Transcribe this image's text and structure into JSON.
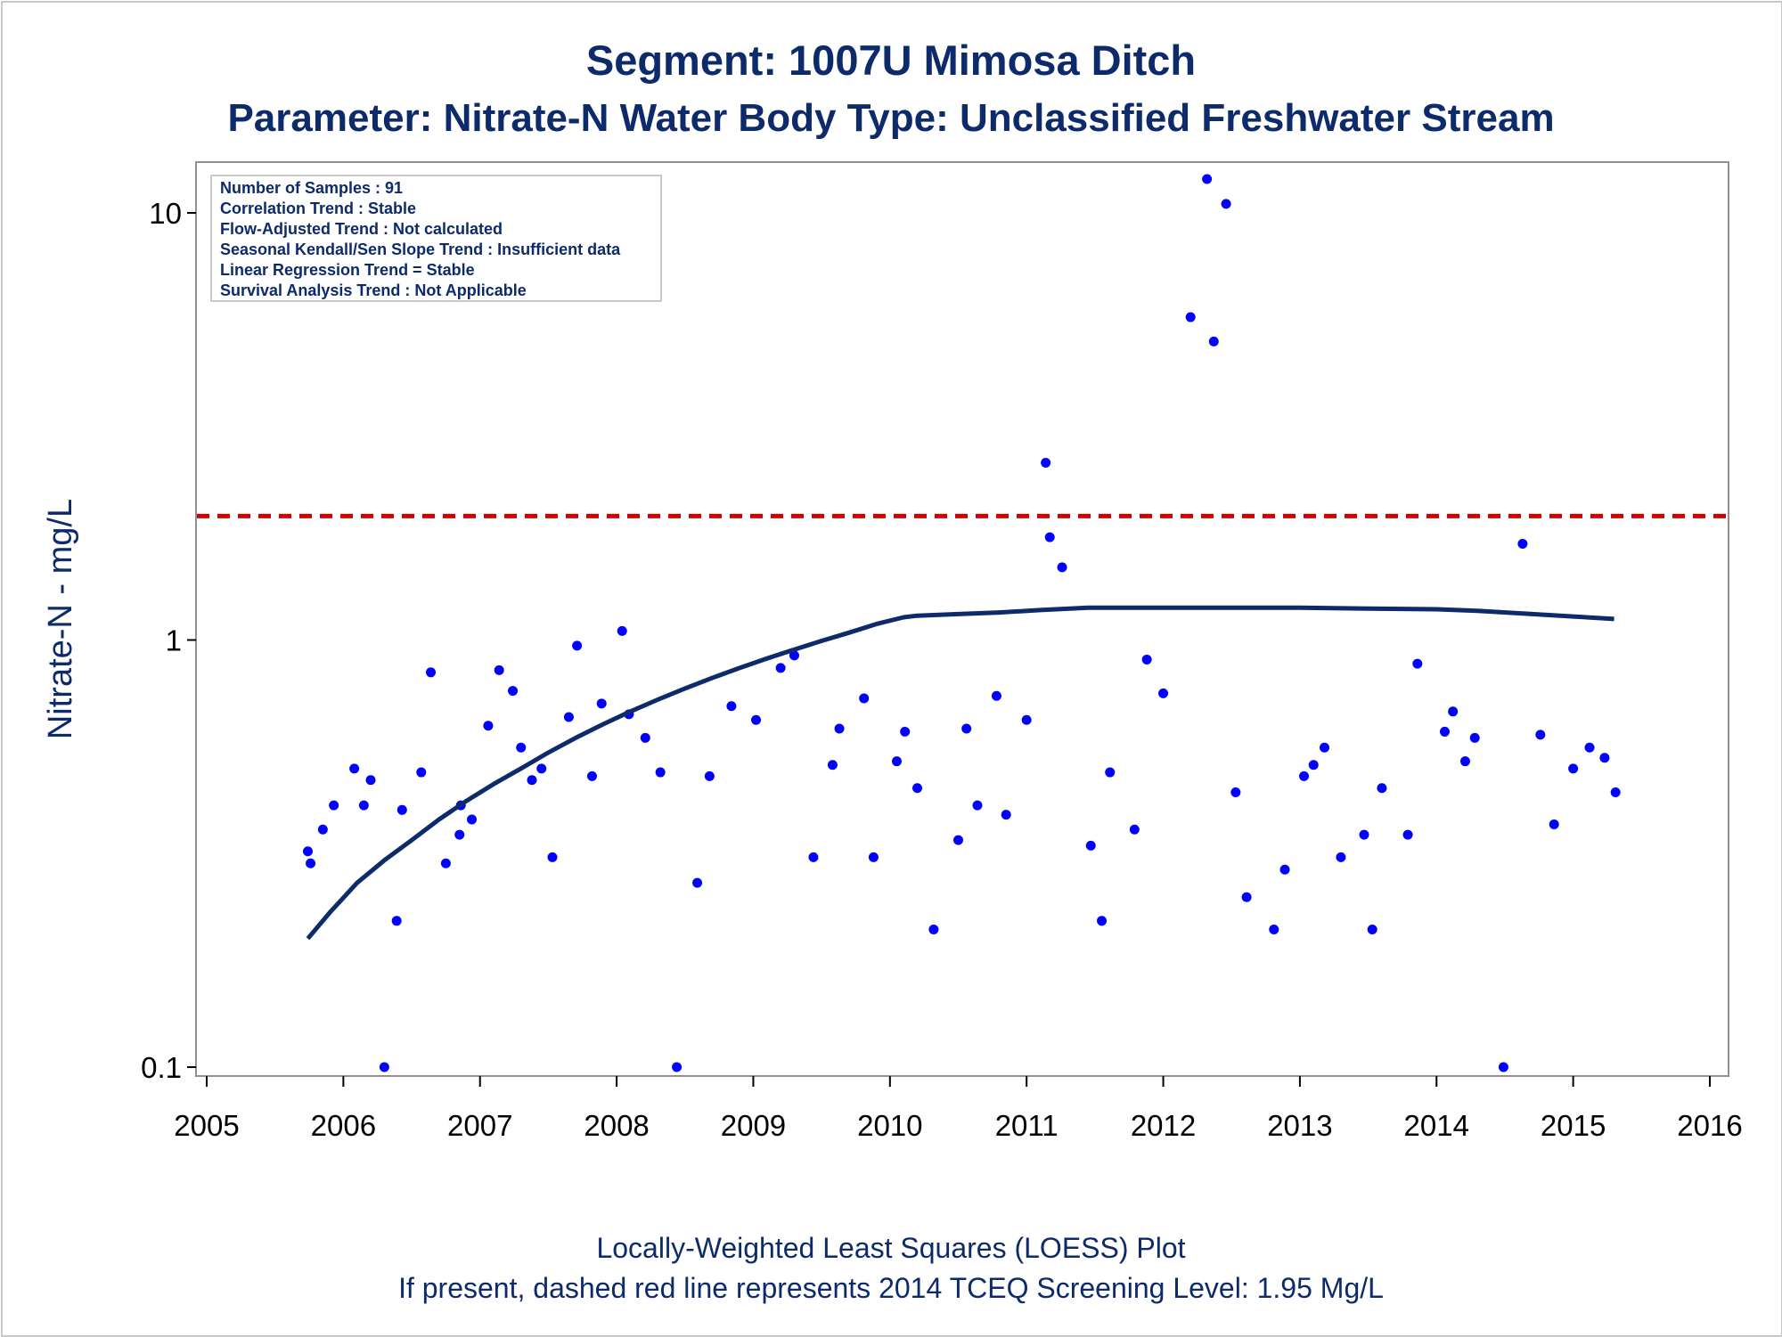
{
  "chart_data": {
    "type": "scatter",
    "title": "Segment: 1007U  Mimosa Ditch",
    "subtitle": "Parameter: Nitrate-N   Water Body Type: Unclassified Freshwater Stream",
    "xlabel": "",
    "ylabel": "Nitrate-N - mg/L",
    "y_scale": "log",
    "xlim": [
      2005,
      2016
    ],
    "ylim": [
      0.1,
      12.5
    ],
    "x_ticks": [
      "2005",
      "2006",
      "2007",
      "2008",
      "2009",
      "2010",
      "2011",
      "2012",
      "2013",
      "2014",
      "2015",
      "2016"
    ],
    "y_ticks": [
      {
        "value": 0.1,
        "label": "0.1"
      },
      {
        "value": 1,
        "label": "1"
      },
      {
        "value": 10,
        "label": "10"
      }
    ],
    "grid": false,
    "stats_box": {
      "placement": "top-left",
      "lines": [
        "Number of Samples : 91",
        "Correlation Trend : Stable",
        "Flow-Adjusted Trend : Not calculated",
        "Seasonal Kendall/Sen Slope Trend : Insufficient data",
        "Linear Regression Trend = Stable",
        "Survival Analysis Trend : Not Applicable"
      ]
    },
    "screening_level": {
      "value": 1.95,
      "color": "#d40000",
      "style": "dashed"
    },
    "series": [
      {
        "type": "scatter",
        "color": "#0000ff",
        "points": [
          [
            2005.74,
            0.32
          ],
          [
            2005.76,
            0.3
          ],
          [
            2005.85,
            0.36
          ],
          [
            2005.93,
            0.41
          ],
          [
            2006.08,
            0.5
          ],
          [
            2006.15,
            0.41
          ],
          [
            2006.2,
            0.47
          ],
          [
            2006.3,
            0.1
          ],
          [
            2006.39,
            0.22
          ],
          [
            2006.43,
            0.4
          ],
          [
            2006.57,
            0.49
          ],
          [
            2006.64,
            0.84
          ],
          [
            2006.75,
            0.3
          ],
          [
            2006.85,
            0.35
          ],
          [
            2006.86,
            0.41
          ],
          [
            2006.94,
            0.38
          ],
          [
            2007.06,
            0.63
          ],
          [
            2007.14,
            0.85
          ],
          [
            2007.24,
            0.76
          ],
          [
            2007.3,
            0.56
          ],
          [
            2007.38,
            0.47
          ],
          [
            2007.45,
            0.5
          ],
          [
            2007.53,
            0.31
          ],
          [
            2007.65,
            0.66
          ],
          [
            2007.71,
            0.97
          ],
          [
            2007.82,
            0.48
          ],
          [
            2007.89,
            0.71
          ],
          [
            2008.04,
            1.05
          ],
          [
            2008.09,
            0.67
          ],
          [
            2008.21,
            0.59
          ],
          [
            2008.32,
            0.49
          ],
          [
            2008.44,
            0.1
          ],
          [
            2008.59,
            0.27
          ],
          [
            2008.68,
            0.48
          ],
          [
            2008.84,
            0.7
          ],
          [
            2009.02,
            0.65
          ],
          [
            2009.2,
            0.86
          ],
          [
            2009.3,
            0.92
          ],
          [
            2009.44,
            0.31
          ],
          [
            2009.58,
            0.51
          ],
          [
            2009.63,
            0.62
          ],
          [
            2009.81,
            0.73
          ],
          [
            2009.88,
            0.31
          ],
          [
            2010.05,
            0.52
          ],
          [
            2010.11,
            0.61
          ],
          [
            2010.2,
            0.45
          ],
          [
            2010.32,
            0.21
          ],
          [
            2010.5,
            0.34
          ],
          [
            2010.56,
            0.62
          ],
          [
            2010.64,
            0.41
          ],
          [
            2010.78,
            0.74
          ],
          [
            2010.85,
            0.39
          ],
          [
            2011.0,
            0.65
          ],
          [
            2011.14,
            2.6
          ],
          [
            2011.17,
            1.74
          ],
          [
            2011.26,
            1.48
          ],
          [
            2011.47,
            0.33
          ],
          [
            2011.55,
            0.22
          ],
          [
            2011.61,
            0.49
          ],
          [
            2011.79,
            0.36
          ],
          [
            2011.88,
            0.9
          ],
          [
            2012.0,
            0.75
          ],
          [
            2012.2,
            5.7
          ],
          [
            2012.32,
            12.0
          ],
          [
            2012.37,
            5.0
          ],
          [
            2012.46,
            10.5
          ],
          [
            2012.53,
            0.44
          ],
          [
            2012.61,
            0.25
          ],
          [
            2012.81,
            0.21
          ],
          [
            2012.89,
            0.29
          ],
          [
            2013.03,
            0.48
          ],
          [
            2013.1,
            0.51
          ],
          [
            2013.18,
            0.56
          ],
          [
            2013.3,
            0.31
          ],
          [
            2013.47,
            0.35
          ],
          [
            2013.53,
            0.21
          ],
          [
            2013.6,
            0.45
          ],
          [
            2013.79,
            0.35
          ],
          [
            2013.86,
            0.88
          ],
          [
            2014.06,
            0.61
          ],
          [
            2014.12,
            0.68
          ],
          [
            2014.21,
            0.52
          ],
          [
            2014.28,
            0.59
          ],
          [
            2014.49,
            0.1
          ],
          [
            2014.63,
            1.68
          ],
          [
            2014.76,
            0.6
          ],
          [
            2014.86,
            0.37
          ],
          [
            2015.0,
            0.5
          ],
          [
            2015.12,
            0.56
          ],
          [
            2015.23,
            0.53
          ],
          [
            2015.31,
            0.44
          ]
        ]
      },
      {
        "type": "line",
        "color": "#0d2a6b",
        "points": [
          [
            2005.74,
            0.2
          ],
          [
            2005.9,
            0.23
          ],
          [
            2006.1,
            0.27
          ],
          [
            2006.3,
            0.305
          ],
          [
            2006.5,
            0.34
          ],
          [
            2006.7,
            0.38
          ],
          [
            2006.9,
            0.42
          ],
          [
            2007.1,
            0.46
          ],
          [
            2007.3,
            0.5
          ],
          [
            2007.5,
            0.545
          ],
          [
            2007.7,
            0.59
          ],
          [
            2007.9,
            0.635
          ],
          [
            2008.1,
            0.68
          ],
          [
            2008.3,
            0.725
          ],
          [
            2008.5,
            0.77
          ],
          [
            2008.7,
            0.815
          ],
          [
            2008.9,
            0.86
          ],
          [
            2009.1,
            0.905
          ],
          [
            2009.3,
            0.95
          ],
          [
            2009.5,
            0.995
          ],
          [
            2009.7,
            1.04
          ],
          [
            2009.9,
            1.09
          ],
          [
            2010.1,
            1.13
          ],
          [
            2010.2,
            1.14
          ],
          [
            2010.5,
            1.15
          ],
          [
            2010.8,
            1.16
          ],
          [
            2011.1,
            1.175
          ],
          [
            2011.45,
            1.19
          ],
          [
            2012.0,
            1.19
          ],
          [
            2012.7,
            1.19
          ],
          [
            2013.0,
            1.19
          ],
          [
            2013.5,
            1.185
          ],
          [
            2014.0,
            1.18
          ],
          [
            2014.3,
            1.17
          ],
          [
            2014.7,
            1.15
          ],
          [
            2015.0,
            1.135
          ],
          [
            2015.3,
            1.12
          ]
        ]
      }
    ]
  },
  "footer": {
    "line1": "Locally-Weighted Least Squares (LOESS) Plot",
    "line2": "If present, dashed red line represents 2014 TCEQ Screening Level: 1.95 Mg/L"
  }
}
